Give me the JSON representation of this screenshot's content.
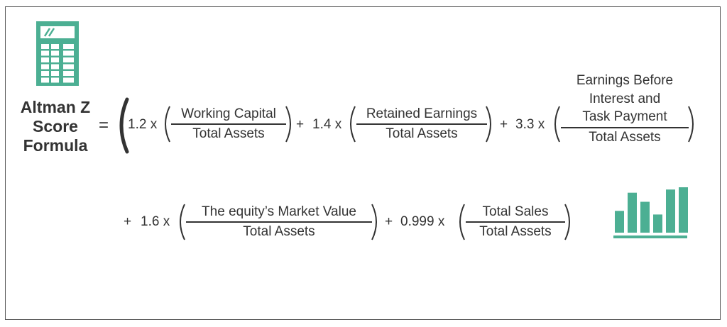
{
  "title_lines": [
    "Altman Z",
    "Score",
    "Formula"
  ],
  "operators": {
    "equals": "=",
    "coef1": "1.2 x",
    "plus2": "+",
    "coef2": "1.4 x",
    "plus3": "+",
    "coef3": "3.3 x",
    "plus4": "+",
    "coef4": "1.6 x",
    "plus5": "+",
    "coef5": "0.999 x"
  },
  "terms": {
    "t1": {
      "numerator": "Working Capital",
      "denominator": "Total Assets"
    },
    "t2": {
      "numerator": "Retained Earnings",
      "denominator": "Total Assets"
    },
    "t3": {
      "numerator_lines": [
        "Earnings Before",
        "Interest and",
        "Task Payment"
      ],
      "denominator": "Total Assets"
    },
    "t4": {
      "numerator": "The equity’s Market Value",
      "denominator": "Total Assets"
    },
    "t5": {
      "numerator": "Total Sales",
      "denominator": "Total Assets"
    }
  },
  "icons": {
    "calculator": "calculator-icon",
    "bar_chart": "bar-chart-icon"
  },
  "colors": {
    "accent": "#4caf93",
    "text": "#333333",
    "border": "#555555"
  },
  "bar_chart_levels": [
    0.48,
    0.88,
    0.68,
    0.4,
    0.95,
    1.0
  ]
}
